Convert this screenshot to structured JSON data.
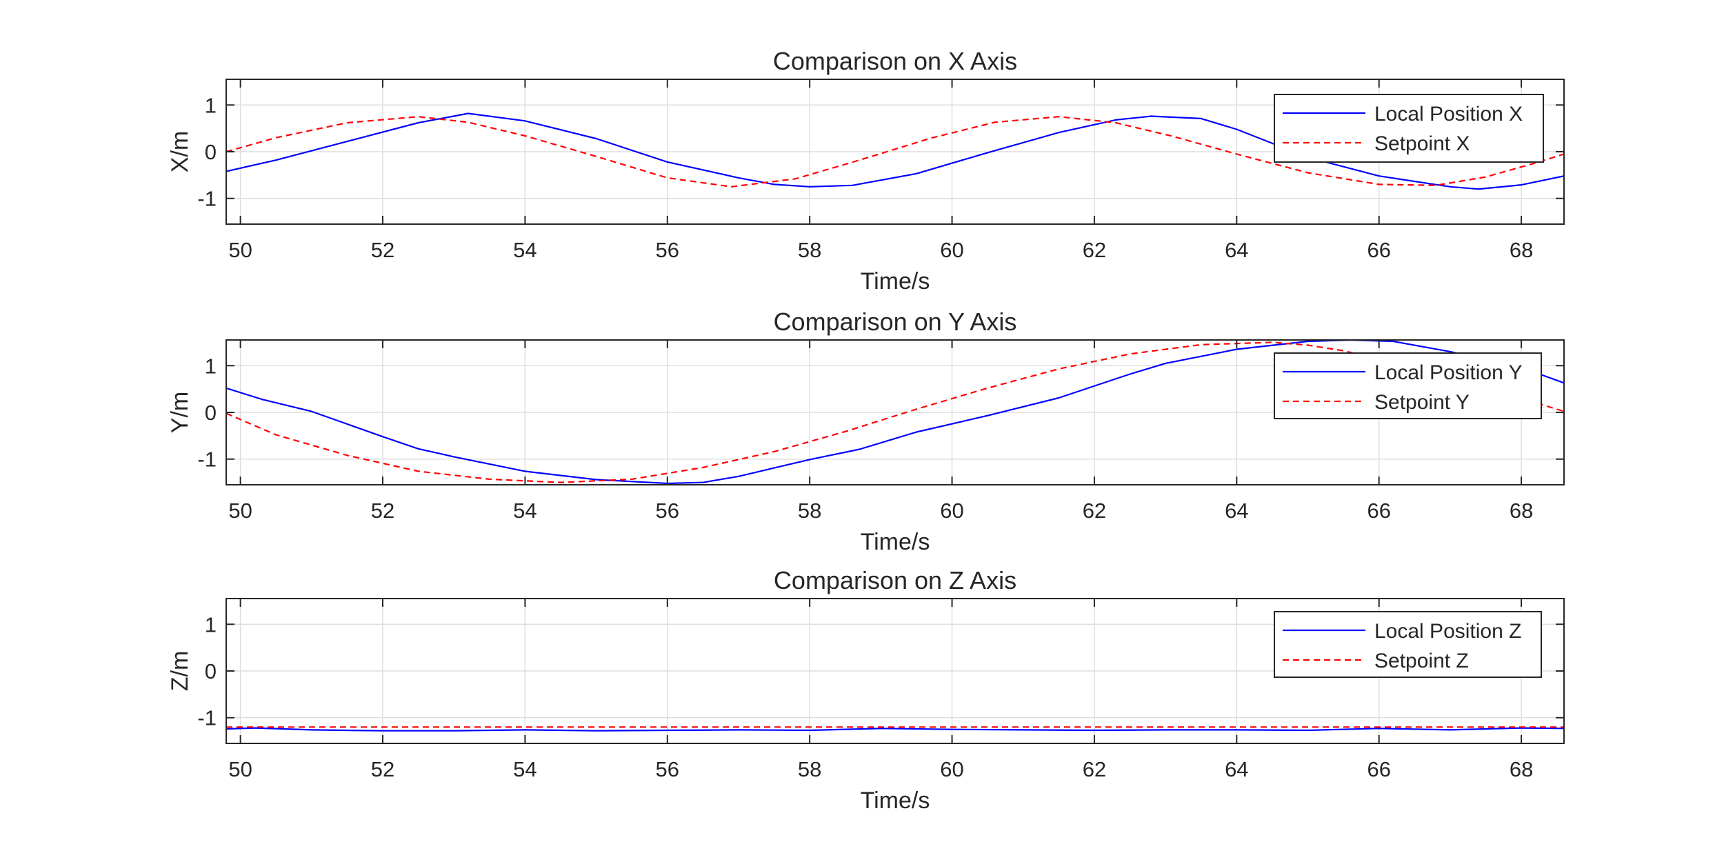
{
  "chart_data": [
    {
      "type": "line",
      "title": "Comparison on X Axis",
      "xlabel": "Time/s",
      "ylabel": "X/m",
      "xlim": [
        49.8,
        68.6
      ],
      "ylim": [
        -1.55,
        1.55
      ],
      "xticks": [
        "50",
        "52",
        "54",
        "56",
        "58",
        "60",
        "62",
        "64",
        "66",
        "68"
      ],
      "yticks": [
        "-1",
        "0",
        "1"
      ],
      "grid": true,
      "legend_position": "top-right",
      "colors": {
        "local": "#0000ff",
        "setpoint": "#ff0000"
      },
      "series": [
        {
          "name": "Local Position X",
          "style": "solid",
          "x": [
            49.8,
            50.5,
            51.5,
            52.5,
            53.2,
            54.0,
            55.0,
            56.0,
            57.0,
            57.5,
            58.0,
            58.6,
            59.5,
            60.5,
            61.5,
            62.3,
            62.8,
            63.5,
            64.0,
            65.0,
            66.0,
            67.0,
            67.4,
            68.0,
            68.6
          ],
          "y": [
            -0.42,
            -0.18,
            0.22,
            0.62,
            0.82,
            0.66,
            0.28,
            -0.22,
            -0.56,
            -0.7,
            -0.75,
            -0.72,
            -0.47,
            -0.02,
            0.41,
            0.68,
            0.76,
            0.71,
            0.48,
            -0.12,
            -0.52,
            -0.75,
            -0.8,
            -0.71,
            -0.52
          ]
        },
        {
          "name": "Setpoint X",
          "style": "dashed",
          "x": [
            49.8,
            50.5,
            51.5,
            52.5,
            53.2,
            54.0,
            55.0,
            56.0,
            56.9,
            57.8,
            58.7,
            59.7,
            60.6,
            61.5,
            62.3,
            63.1,
            64.0,
            65.0,
            66.0,
            66.8,
            67.5,
            68.2,
            68.6
          ],
          "y": [
            0.0,
            0.3,
            0.62,
            0.75,
            0.63,
            0.34,
            -0.1,
            -0.56,
            -0.75,
            -0.58,
            -0.18,
            0.29,
            0.63,
            0.75,
            0.62,
            0.33,
            -0.05,
            -0.45,
            -0.7,
            -0.72,
            -0.54,
            -0.24,
            -0.05
          ]
        }
      ]
    },
    {
      "type": "line",
      "title": "Comparison on Y Axis",
      "xlabel": "Time/s",
      "ylabel": "Y/m",
      "xlim": [
        49.8,
        68.6
      ],
      "ylim": [
        -1.55,
        1.55
      ],
      "xticks": [
        "50",
        "52",
        "54",
        "56",
        "58",
        "60",
        "62",
        "64",
        "66",
        "68"
      ],
      "yticks": [
        "-1",
        "0",
        "1"
      ],
      "grid": true,
      "legend_position": "top-right",
      "colors": {
        "local": "#0000ff",
        "setpoint": "#ff0000"
      },
      "series": [
        {
          "name": "Local Position Y",
          "style": "solid",
          "x": [
            49.8,
            50.3,
            51.0,
            52.0,
            52.5,
            53.0,
            54.0,
            55.0,
            56.0,
            56.5,
            57.0,
            58.0,
            58.7,
            59.5,
            60.5,
            61.5,
            62.5,
            63.0,
            64.0,
            65.0,
            65.6,
            66.2,
            67.0,
            68.0,
            68.6
          ],
          "y": [
            0.52,
            0.28,
            0.02,
            -0.52,
            -0.78,
            -0.95,
            -1.26,
            -1.44,
            -1.52,
            -1.5,
            -1.37,
            -1.01,
            -0.79,
            -0.42,
            -0.07,
            0.31,
            0.82,
            1.05,
            1.35,
            1.52,
            1.55,
            1.52,
            1.3,
            0.96,
            0.63
          ]
        },
        {
          "name": "Setpoint Y",
          "style": "dashed",
          "x": [
            49.8,
            50.5,
            51.5,
            52.5,
            53.5,
            54.5,
            55.5,
            56.5,
            57.5,
            58.5,
            59.5,
            60.5,
            61.5,
            62.5,
            63.5,
            64.5,
            65.0,
            65.5,
            66.0,
            66.5,
            67.0,
            67.5,
            68.0,
            68.6
          ],
          "y": [
            -0.02,
            -0.48,
            -0.92,
            -1.26,
            -1.43,
            -1.5,
            -1.43,
            -1.18,
            -0.84,
            -0.41,
            0.07,
            0.52,
            0.93,
            1.25,
            1.45,
            1.5,
            1.44,
            1.32,
            1.14,
            0.94,
            0.73,
            0.5,
            0.3,
            0.02
          ]
        }
      ]
    },
    {
      "type": "line",
      "title": "Comparison on Z Axis",
      "xlabel": "Time/s",
      "ylabel": "Z/m",
      "xlim": [
        49.8,
        68.6
      ],
      "ylim": [
        -1.55,
        1.55
      ],
      "xticks": [
        "50",
        "52",
        "54",
        "56",
        "58",
        "60",
        "62",
        "64",
        "66",
        "68"
      ],
      "yticks": [
        "-1",
        "0",
        "1"
      ],
      "grid": true,
      "legend_position": "top-right",
      "colors": {
        "local": "#0000ff",
        "setpoint": "#ff0000"
      },
      "series": [
        {
          "name": "Local Position Z",
          "style": "solid",
          "x": [
            49.8,
            50.2,
            51.0,
            52.0,
            53.0,
            54.0,
            55.0,
            56.0,
            57.0,
            58.0,
            59.0,
            60.0,
            61.0,
            62.0,
            63.0,
            64.0,
            65.0,
            66.0,
            67.0,
            68.0,
            68.6
          ],
          "y": [
            -1.24,
            -1.22,
            -1.26,
            -1.28,
            -1.28,
            -1.26,
            -1.28,
            -1.27,
            -1.26,
            -1.27,
            -1.23,
            -1.25,
            -1.26,
            -1.27,
            -1.26,
            -1.26,
            -1.27,
            -1.23,
            -1.26,
            -1.22,
            -1.23
          ]
        },
        {
          "name": "Setpoint Z",
          "style": "dashed",
          "x": [
            49.8,
            68.6
          ],
          "y": [
            -1.2,
            -1.2
          ]
        }
      ]
    }
  ]
}
